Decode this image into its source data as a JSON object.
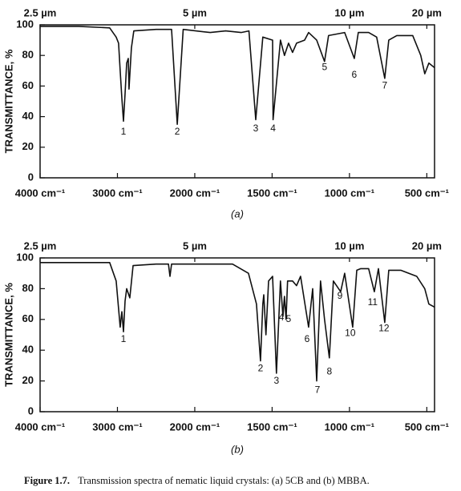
{
  "chart_data": [
    {
      "type": "line",
      "label": "(a)",
      "ylabel": "TRANSMITTANCE, %",
      "xlim": [
        4000,
        450
      ],
      "xscale": {
        "break": 2000,
        "ratio": 2
      },
      "xticks": [
        {
          "value": 4000,
          "label": "4000 cm⁻¹"
        },
        {
          "value": 3000,
          "label": "3000 cm⁻¹"
        },
        {
          "value": 2000,
          "label": "2000 cm⁻¹"
        },
        {
          "value": 1500,
          "label": "1500 cm⁻¹"
        },
        {
          "value": 1000,
          "label": "1000 cm⁻¹"
        },
        {
          "value": 500,
          "label": "500 cm⁻¹"
        }
      ],
      "x2ticks": [
        {
          "value": 2.5,
          "label": "2.5 µm"
        },
        {
          "value": 5,
          "label": "5 µm"
        },
        {
          "value": 10,
          "label": "10 µm"
        },
        {
          "value": 20,
          "label": "20 µm"
        }
      ],
      "ylim": [
        0,
        100
      ],
      "yticks": [
        0,
        20,
        40,
        60,
        80,
        100
      ],
      "color": "#111111",
      "x": [
        4000,
        3500,
        3100,
        3016,
        2985,
        2964,
        2943,
        2922,
        2901,
        2881,
        2860,
        2850,
        2819,
        2788,
        2500,
        2300,
        2226,
        2150,
        1900,
        1800,
        1700,
        1650,
        1606,
        1560,
        1497,
        1494,
        1446,
        1420,
        1394,
        1368,
        1342,
        1290,
        1264,
        1212,
        1161,
        1135,
        1083,
        1031,
        969,
        943,
        876,
        824,
        772,
        746,
        694,
        591,
        539,
        513,
        487,
        450
      ],
      "values": [
        99,
        99,
        98,
        92,
        88,
        70,
        52,
        37,
        55,
        75,
        78,
        58,
        85,
        96,
        97,
        97,
        35,
        97,
        95,
        96,
        95,
        96,
        38,
        92,
        90,
        38,
        90,
        80,
        88,
        82,
        88,
        90,
        95,
        90,
        76,
        93,
        94,
        95,
        78,
        95,
        95,
        92,
        65,
        90,
        93,
        93,
        80,
        68,
        75,
        72
      ],
      "annotations": [
        {
          "text": "1",
          "x": 2922,
          "y": 30
        },
        {
          "text": "2",
          "x": 2226,
          "y": 30
        },
        {
          "text": "3",
          "x": 1606,
          "y": 32
        },
        {
          "text": "4",
          "x": 1494,
          "y": 32
        },
        {
          "text": "5",
          "x": 1161,
          "y": 72
        },
        {
          "text": "6",
          "x": 969,
          "y": 67
        },
        {
          "text": "7",
          "x": 772,
          "y": 60
        }
      ]
    },
    {
      "type": "line",
      "label": "(b)",
      "ylabel": "TRANSMITTANCE, %",
      "xlim": [
        4000,
        450
      ],
      "xscale": {
        "break": 2000,
        "ratio": 2
      },
      "xticks": [
        {
          "value": 4000,
          "label": "4000 cm⁻¹"
        },
        {
          "value": 3000,
          "label": "3000 cm⁻¹"
        },
        {
          "value": 2000,
          "label": "2000 cm⁻¹"
        },
        {
          "value": 1500,
          "label": "1500 cm⁻¹"
        },
        {
          "value": 1000,
          "label": "1000 cm⁻¹"
        },
        {
          "value": 500,
          "label": "500 cm⁻¹"
        }
      ],
      "x2ticks": [
        {
          "value": 2.5,
          "label": "2.5 µm"
        },
        {
          "value": 5,
          "label": "5 µm"
        },
        {
          "value": 10,
          "label": "10 µm"
        },
        {
          "value": 20,
          "label": "20 µm"
        }
      ],
      "ylim": [
        0,
        100
      ],
      "yticks": [
        0,
        20,
        40,
        60,
        80,
        100
      ],
      "color": "#111111",
      "x": [
        4000,
        3500,
        3100,
        3016,
        2964,
        2943,
        2922,
        2901,
        2881,
        2840,
        2798,
        2500,
        2340,
        2321,
        2300,
        1756,
        1653,
        1601,
        1575,
        1560,
        1554,
        1540,
        1523,
        1497,
        1472,
        1446,
        1430,
        1420,
        1410,
        1400,
        1368,
        1342,
        1316,
        1264,
        1238,
        1212,
        1187,
        1161,
        1130,
        1104,
        1057,
        1031,
        979,
        953,
        927,
        876,
        839,
        813,
        772,
        746,
        668,
        565,
        513,
        487,
        450
      ],
      "values": [
        97,
        97,
        97,
        85,
        55,
        65,
        52,
        72,
        80,
        74,
        95,
        96,
        96,
        88,
        96,
        96,
        90,
        70,
        33,
        70,
        76,
        50,
        85,
        88,
        25,
        85,
        62,
        75,
        60,
        85,
        85,
        82,
        88,
        55,
        80,
        20,
        85,
        60,
        35,
        85,
        78,
        90,
        55,
        92,
        93,
        93,
        78,
        93,
        58,
        92,
        92,
        88,
        80,
        70,
        68
      ],
      "annotations": [
        {
          "text": "1",
          "x": 2922,
          "y": 47
        },
        {
          "text": "2",
          "x": 1575,
          "y": 28
        },
        {
          "text": "3",
          "x": 1472,
          "y": 20
        },
        {
          "text": "4",
          "x": 1440,
          "y": 61
        },
        {
          "text": "5",
          "x": 1394,
          "y": 60
        },
        {
          "text": "6",
          "x": 1274,
          "y": 47
        },
        {
          "text": "7",
          "x": 1207,
          "y": 14
        },
        {
          "text": "8",
          "x": 1130,
          "y": 26
        },
        {
          "text": "9",
          "x": 1062,
          "y": 75
        },
        {
          "text": "10",
          "x": 995,
          "y": 51
        },
        {
          "text": "11",
          "x": 850,
          "y": 71
        },
        {
          "text": "12",
          "x": 777,
          "y": 54
        }
      ]
    }
  ],
  "caption": {
    "label": "Figure 1.7.",
    "text": "Transmission spectra of nematic liquid crystals: (a) 5CB and (b) MBBA."
  }
}
